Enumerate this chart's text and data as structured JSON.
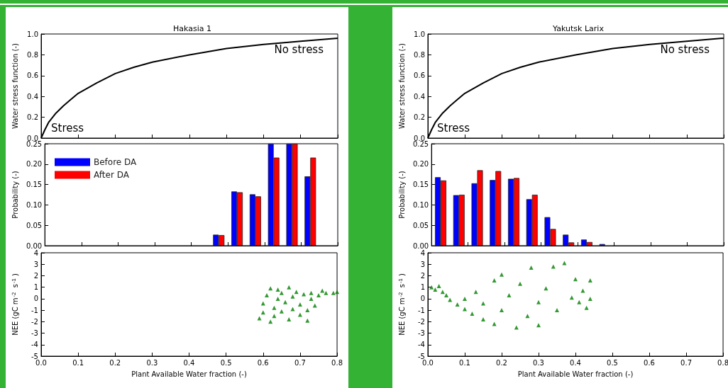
{
  "chart_data": [
    {
      "type": "line",
      "title": "Hakasia 1",
      "ylabel": "Water stress function (-)",
      "annotations": [
        "Stress",
        "No stress"
      ],
      "x": [
        0,
        0.01,
        0.02,
        0.04,
        0.06,
        0.08,
        0.1,
        0.15,
        0.2,
        0.25,
        0.3,
        0.4,
        0.5,
        0.6,
        0.7,
        0.8
      ],
      "series": [
        {
          "color": "#000000",
          "values": [
            0,
            0.08,
            0.15,
            0.24,
            0.31,
            0.37,
            0.43,
            0.53,
            0.62,
            0.68,
            0.73,
            0.8,
            0.86,
            0.9,
            0.93,
            0.96
          ]
        }
      ],
      "xlim": [
        0,
        0.8
      ],
      "xticks": [
        0,
        0.1,
        0.2,
        0.3,
        0.4,
        0.5,
        0.6,
        0.7,
        0.8
      ],
      "ylim": [
        0,
        1
      ],
      "yticks": [
        {
          "value": 0,
          "label": "0.0"
        },
        {
          "value": 0.2,
          "label": "0.2"
        },
        {
          "value": 0.4,
          "label": "0.4"
        },
        {
          "value": 0.6,
          "label": "0.6"
        },
        {
          "value": 0.8,
          "label": "0.8"
        },
        {
          "value": 1,
          "label": "1.0"
        }
      ],
      "tick_labels": "y",
      "grid": false,
      "marker": "none",
      "line_style": "solid"
    },
    {
      "type": "line",
      "title": "Yakutsk Larix",
      "ylabel": "Water stress function (-)",
      "annotations": [
        "Stress",
        "No stress"
      ],
      "x": [
        0,
        0.01,
        0.02,
        0.04,
        0.06,
        0.08,
        0.1,
        0.15,
        0.2,
        0.25,
        0.3,
        0.4,
        0.5,
        0.6,
        0.7,
        0.8
      ],
      "series": [
        {
          "color": "#000000",
          "values": [
            0,
            0.08,
            0.15,
            0.24,
            0.31,
            0.37,
            0.43,
            0.53,
            0.62,
            0.68,
            0.73,
            0.8,
            0.86,
            0.9,
            0.93,
            0.96
          ]
        }
      ],
      "xlim": [
        0,
        0.8
      ],
      "xticks": [
        0,
        0.1,
        0.2,
        0.3,
        0.4,
        0.5,
        0.6,
        0.7,
        0.8
      ],
      "ylim": [
        0,
        1
      ],
      "yticks": [
        {
          "value": 0,
          "label": "0.0"
        },
        {
          "value": 0.2,
          "label": "0.2"
        },
        {
          "value": 0.4,
          "label": "0.4"
        },
        {
          "value": 0.6,
          "label": "0.6"
        },
        {
          "value": 0.8,
          "label": "0.8"
        },
        {
          "value": 1,
          "label": "1.0"
        }
      ],
      "tick_labels": "y",
      "grid": false,
      "marker": "none",
      "line_style": "solid"
    },
    {
      "type": "histogram",
      "ylabel": "Probability (-)",
      "bins": [
        0,
        0.05,
        0.1,
        0.15,
        0.2,
        0.25,
        0.3,
        0.35,
        0.4,
        0.45,
        0.5,
        0.55,
        0.6,
        0.65,
        0.7,
        0.75,
        0.8
      ],
      "series": [
        {
          "name": "Before DA",
          "color": "#0000ff",
          "values": [
            0,
            0,
            0,
            0,
            0,
            0,
            0,
            0,
            0,
            0.027,
            0.133,
            0.126,
            0.25,
            0.25,
            0.17,
            0
          ]
        },
        {
          "name": "After DA",
          "color": "#ff0000",
          "values": [
            0,
            0,
            0,
            0,
            0,
            0,
            0,
            0,
            0,
            0.026,
            0.131,
            0.121,
            0.216,
            0.25,
            0.216,
            0
          ]
        }
      ],
      "xlim": [
        0,
        0.8
      ],
      "xticks": [
        0,
        0.1,
        0.2,
        0.3,
        0.4,
        0.5,
        0.6,
        0.7,
        0.8
      ],
      "ylim": [
        0,
        0.25
      ],
      "yticks": [
        {
          "value": 0,
          "label": "0.00"
        },
        {
          "value": 0.05,
          "label": "0.05"
        },
        {
          "value": 0.1,
          "label": "0.10"
        },
        {
          "value": 0.15,
          "label": "0.15"
        },
        {
          "value": 0.2,
          "label": "0.20"
        },
        {
          "value": 0.25,
          "label": "0.25"
        }
      ],
      "tick_labels": "y",
      "grid": false,
      "legend": "top left"
    },
    {
      "type": "histogram",
      "ylabel": "Probability (-)",
      "bins": [
        0,
        0.05,
        0.1,
        0.15,
        0.2,
        0.25,
        0.3,
        0.35,
        0.4,
        0.45,
        0.5,
        0.55,
        0.6,
        0.65,
        0.7,
        0.75,
        0.8
      ],
      "series": [
        {
          "color": "#0000ff",
          "values": [
            0.168,
            0.124,
            0.153,
            0.161,
            0.164,
            0.114,
            0.07,
            0.027,
            0.015,
            0.004,
            0,
            0,
            0,
            0,
            0,
            0
          ]
        },
        {
          "color": "#ff0000",
          "values": [
            0.16,
            0.125,
            0.185,
            0.183,
            0.166,
            0.125,
            0.041,
            0.008,
            0.009,
            0,
            0,
            0,
            0,
            0,
            0,
            0
          ]
        }
      ],
      "xlim": [
        0,
        0.8
      ],
      "xticks": [
        0,
        0.1,
        0.2,
        0.3,
        0.4,
        0.5,
        0.6,
        0.7,
        0.8
      ],
      "ylim": [
        0,
        0.25
      ],
      "yticks": [
        {
          "value": 0,
          "label": "0.00"
        },
        {
          "value": 0.05,
          "label": "0.05"
        },
        {
          "value": 0.1,
          "label": "0.10"
        },
        {
          "value": 0.15,
          "label": "0.15"
        },
        {
          "value": 0.2,
          "label": "0.20"
        },
        {
          "value": 0.25,
          "label": "0.25"
        }
      ],
      "tick_labels": "y",
      "grid": false,
      "legend": false
    },
    {
      "type": "scatter",
      "xlabel": "Plant Available Water fraction (-)",
      "ylabel": "NEE (gC m$^{-2}$ s$^{-1}$)",
      "series": [
        {
          "color": "#008000",
          "x": [
            0.59,
            0.6,
            0.6,
            0.61,
            0.62,
            0.62,
            0.63,
            0.63,
            0.64,
            0.64,
            0.65,
            0.65,
            0.66,
            0.67,
            0.67,
            0.68,
            0.68,
            0.69,
            0.7,
            0.7,
            0.71,
            0.72,
            0.72,
            0.73,
            0.73,
            0.74,
            0.75,
            0.76,
            0.77,
            0.79,
            0.8
          ],
          "values": [
            -1.7,
            -1.2,
            -0.4,
            0.3,
            0.9,
            -2,
            -1.5,
            -0.8,
            0,
            0.8,
            -1.1,
            0.5,
            -0.3,
            -1.8,
            1,
            -0.9,
            0.2,
            0.6,
            -0.5,
            -1.4,
            0.4,
            -1,
            -1.9,
            0,
            0.5,
            -0.6,
            0.3,
            0.7,
            0.5,
            0.5,
            0.6
          ]
        }
      ],
      "xlim": [
        0,
        0.8
      ],
      "xticks": [
        {
          "value": 0,
          "label": "0.0"
        },
        {
          "value": 0.1,
          "label": "0.1"
        },
        {
          "value": 0.2,
          "label": "0.2"
        },
        {
          "value": 0.3,
          "label": "0.3"
        },
        {
          "value": 0.4,
          "label": "0.4"
        },
        {
          "value": 0.5,
          "label": "0.5"
        },
        {
          "value": 0.6,
          "label": "0.6"
        },
        {
          "value": 0.7,
          "label": "0.7"
        },
        {
          "value": 0.8,
          "label": "0.8"
        }
      ],
      "ylim": [
        -5,
        4
      ],
      "yticks": [
        -5,
        -4,
        -3,
        -2,
        -1,
        0,
        1,
        2,
        3,
        4
      ],
      "grid": false,
      "marker": "triangle"
    },
    {
      "type": "scatter",
      "xlabel": "Plant Available Water fraction (-)",
      "ylabel": "NEE (gC m$^{-2}$ s$^{-1}$)",
      "series": [
        {
          "color": "#008000",
          "x": [
            0.01,
            0.02,
            0.03,
            0.04,
            0.05,
            0.06,
            0.08,
            0.1,
            0.1,
            0.12,
            0.13,
            0.15,
            0.15,
            0.18,
            0.18,
            0.2,
            0.2,
            0.22,
            0.24,
            0.25,
            0.27,
            0.28,
            0.3,
            0.3,
            0.32,
            0.34,
            0.35,
            0.37,
            0.39,
            0.4,
            0.41,
            0.42,
            0.43,
            0.44,
            0.44
          ],
          "values": [
            1,
            0.8,
            1.1,
            0.6,
            0.3,
            -0.1,
            -0.5,
            -0.9,
            0,
            -1.3,
            0.6,
            -1.8,
            -0.4,
            1.6,
            -2.2,
            -1,
            2.1,
            0.3,
            -2.5,
            1.3,
            -1.5,
            2.7,
            -0.3,
            -2.3,
            0.9,
            2.8,
            -1,
            3.1,
            0.1,
            1.7,
            -0.3,
            0.7,
            -0.8,
            1.6,
            0
          ]
        }
      ],
      "xlim": [
        0,
        0.8
      ],
      "xticks": [
        {
          "value": 0,
          "label": "0.0"
        },
        {
          "value": 0.1,
          "label": "0.1"
        },
        {
          "value": 0.2,
          "label": "0.2"
        },
        {
          "value": 0.3,
          "label": "0.3"
        },
        {
          "value": 0.4,
          "label": "0.4"
        },
        {
          "value": 0.5,
          "label": "0.5"
        },
        {
          "value": 0.6,
          "label": "0.6"
        },
        {
          "value": 0.7,
          "label": "0.7"
        },
        {
          "value": 0.8,
          "label": "0.8"
        }
      ],
      "ylim": [
        -5,
        4
      ],
      "yticks": [
        -5,
        -4,
        -3,
        -2,
        -1,
        0,
        1,
        2,
        3,
        4
      ],
      "grid": false,
      "marker": "triangle"
    }
  ]
}
